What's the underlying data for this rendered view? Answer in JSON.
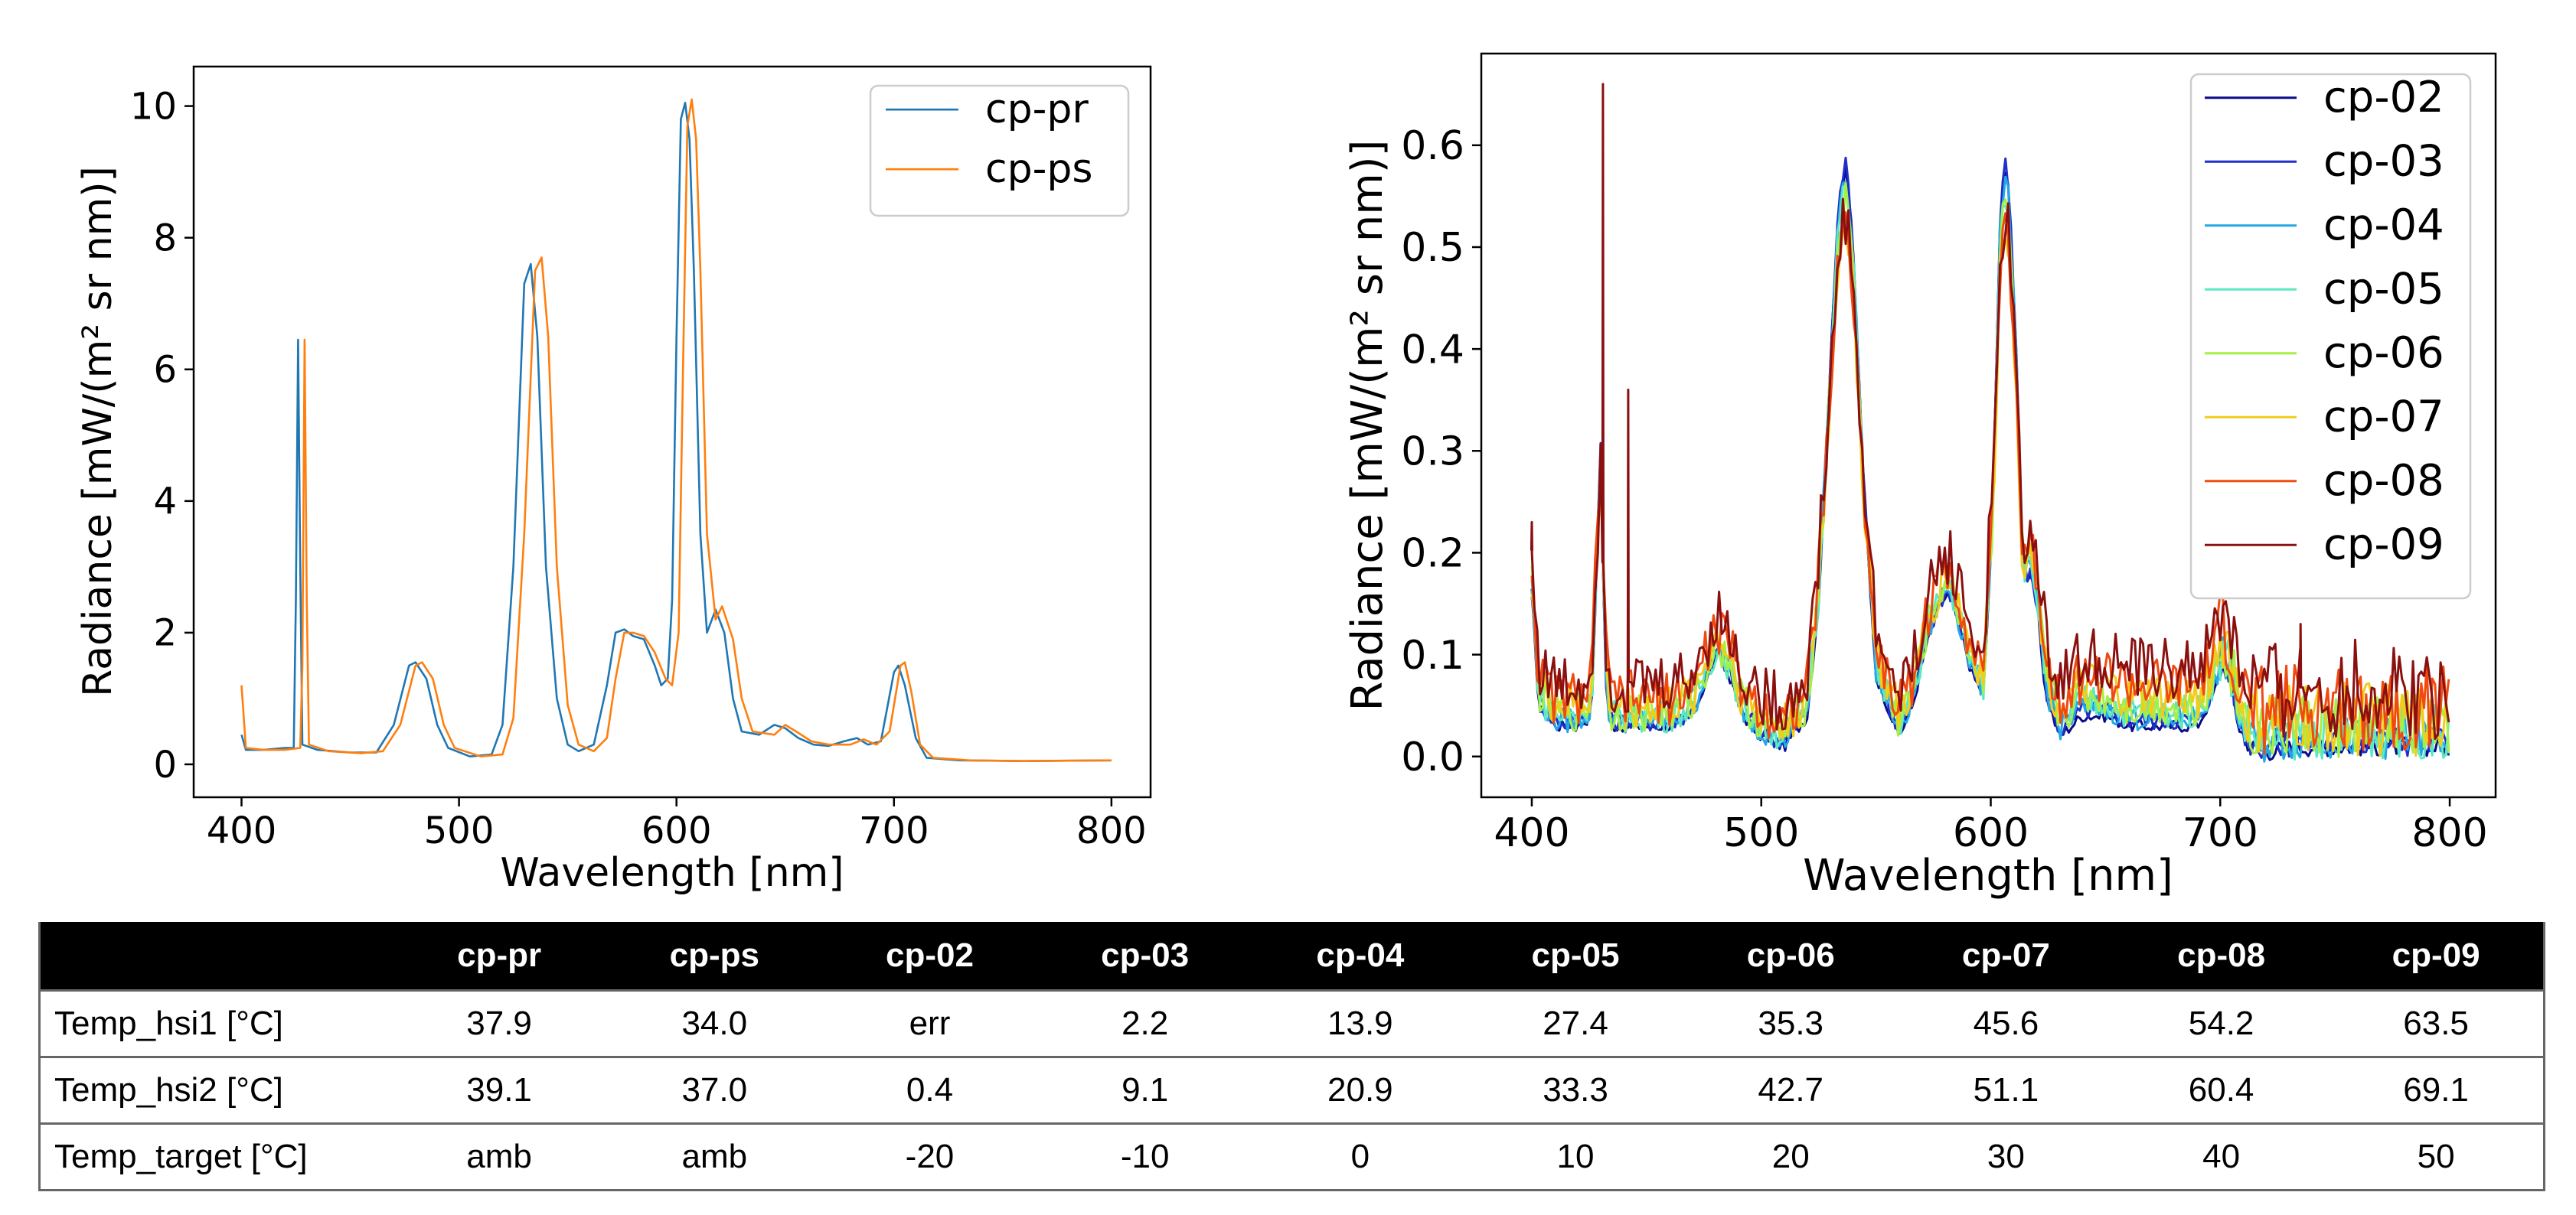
{
  "chart_data": [
    {
      "type": "line",
      "xlabel": "Wavelength [nm]",
      "ylabel": "Radiance [mW/(m² sr nm)]",
      "xlim": [
        378,
        818
      ],
      "ylim": [
        -0.5,
        10.6
      ],
      "xticks": [
        400,
        500,
        600,
        700,
        800
      ],
      "yticks": [
        0,
        2,
        4,
        6,
        8,
        10
      ],
      "grid": false,
      "legend": "top-right",
      "series": [
        {
          "name": "cp-pr",
          "color": "#1f77b4",
          "points": [
            [
              400,
              0.45
            ],
            [
              402,
              0.22
            ],
            [
              410,
              0.22
            ],
            [
              420,
              0.25
            ],
            [
              424,
              0.25
            ],
            [
              425,
              2.5
            ],
            [
              426,
              6.45
            ],
            [
              427,
              3.0
            ],
            [
              428,
              0.3
            ],
            [
              435,
              0.22
            ],
            [
              450,
              0.18
            ],
            [
              462,
              0.18
            ],
            [
              470,
              0.6
            ],
            [
              477,
              1.5
            ],
            [
              480,
              1.55
            ],
            [
              485,
              1.3
            ],
            [
              490,
              0.6
            ],
            [
              495,
              0.25
            ],
            [
              505,
              0.12
            ],
            [
              515,
              0.15
            ],
            [
              520,
              0.6
            ],
            [
              525,
              3.0
            ],
            [
              530,
              7.3
            ],
            [
              533,
              7.6
            ],
            [
              536,
              6.5
            ],
            [
              540,
              3.0
            ],
            [
              545,
              1.0
            ],
            [
              550,
              0.3
            ],
            [
              555,
              0.2
            ],
            [
              562,
              0.3
            ],
            [
              568,
              1.2
            ],
            [
              572,
              2.0
            ],
            [
              576,
              2.05
            ],
            [
              580,
              1.95
            ],
            [
              585,
              1.9
            ],
            [
              590,
              1.5
            ],
            [
              593,
              1.2
            ],
            [
              596,
              1.3
            ],
            [
              598,
              2.5
            ],
            [
              600,
              6.5
            ],
            [
              602,
              9.8
            ],
            [
              604,
              10.05
            ],
            [
              606,
              9.5
            ],
            [
              608,
              7.5
            ],
            [
              611,
              3.5
            ],
            [
              614,
              2.0
            ],
            [
              618,
              2.35
            ],
            [
              622,
              2.0
            ],
            [
              626,
              1.0
            ],
            [
              630,
              0.5
            ],
            [
              638,
              0.45
            ],
            [
              645,
              0.6
            ],
            [
              650,
              0.55
            ],
            [
              656,
              0.4
            ],
            [
              663,
              0.3
            ],
            [
              670,
              0.28
            ],
            [
              677,
              0.35
            ],
            [
              683,
              0.4
            ],
            [
              688,
              0.3
            ],
            [
              694,
              0.35
            ],
            [
              700,
              1.4
            ],
            [
              702,
              1.5
            ],
            [
              705,
              1.2
            ],
            [
              710,
              0.4
            ],
            [
              715,
              0.1
            ],
            [
              730,
              0.06
            ],
            [
              760,
              0.05
            ],
            [
              800,
              0.06
            ]
          ]
        },
        {
          "name": "cp-ps",
          "color": "#ff7f0e",
          "points": [
            [
              400,
              1.2
            ],
            [
              402,
              0.25
            ],
            [
              410,
              0.22
            ],
            [
              420,
              0.22
            ],
            [
              427,
              0.25
            ],
            [
              428,
              1.5
            ],
            [
              429,
              6.45
            ],
            [
              430,
              2.5
            ],
            [
              431,
              0.3
            ],
            [
              440,
              0.2
            ],
            [
              455,
              0.17
            ],
            [
              465,
              0.2
            ],
            [
              473,
              0.6
            ],
            [
              480,
              1.5
            ],
            [
              483,
              1.55
            ],
            [
              488,
              1.3
            ],
            [
              493,
              0.6
            ],
            [
              498,
              0.25
            ],
            [
              510,
              0.12
            ],
            [
              520,
              0.15
            ],
            [
              525,
              0.7
            ],
            [
              530,
              3.5
            ],
            [
              535,
              7.5
            ],
            [
              538,
              7.7
            ],
            [
              541,
              6.5
            ],
            [
              545,
              3.0
            ],
            [
              550,
              0.9
            ],
            [
              555,
              0.3
            ],
            [
              562,
              0.2
            ],
            [
              568,
              0.4
            ],
            [
              572,
              1.3
            ],
            [
              576,
              2.0
            ],
            [
              580,
              2.0
            ],
            [
              585,
              1.95
            ],
            [
              590,
              1.7
            ],
            [
              595,
              1.3
            ],
            [
              598,
              1.2
            ],
            [
              601,
              2.0
            ],
            [
              603,
              6.0
            ],
            [
              605,
              9.7
            ],
            [
              607,
              10.1
            ],
            [
              609,
              9.5
            ],
            [
              611,
              7.5
            ],
            [
              614,
              3.5
            ],
            [
              618,
              2.2
            ],
            [
              621,
              2.4
            ],
            [
              626,
              1.9
            ],
            [
              630,
              1.0
            ],
            [
              635,
              0.5
            ],
            [
              645,
              0.45
            ],
            [
              650,
              0.6
            ],
            [
              655,
              0.5
            ],
            [
              662,
              0.35
            ],
            [
              670,
              0.3
            ],
            [
              680,
              0.3
            ],
            [
              686,
              0.38
            ],
            [
              692,
              0.3
            ],
            [
              698,
              0.5
            ],
            [
              703,
              1.5
            ],
            [
              705,
              1.55
            ],
            [
              708,
              1.1
            ],
            [
              712,
              0.3
            ],
            [
              718,
              0.1
            ],
            [
              735,
              0.06
            ],
            [
              760,
              0.05
            ],
            [
              800,
              0.06
            ]
          ]
        }
      ]
    },
    {
      "type": "line",
      "xlabel": "Wavelength [nm]",
      "ylabel": "Radiance [mW/(m² sr nm)]",
      "xlim": [
        378,
        820
      ],
      "ylim": [
        -0.04,
        0.69
      ],
      "xticks": [
        400,
        500,
        600,
        700,
        800
      ],
      "yticks": [
        0.0,
        0.1,
        0.2,
        0.3,
        0.4,
        0.5,
        0.6
      ],
      "grid": false,
      "legend": "top-right",
      "base_shape": {
        "x": [
          400,
          403,
          410,
          420,
          426,
          428,
          430,
          432,
          434,
          440,
          450,
          460,
          470,
          477,
          481,
          486,
          492,
          500,
          510,
          520,
          525,
          530,
          534,
          537,
          540,
          545,
          550,
          560,
          566,
          572,
          578,
          582,
          586,
          592,
          597,
          601,
          604,
          606,
          608,
          611,
          614,
          618,
          620,
          624,
          630,
          640,
          650,
          660,
          670,
          680,
          690,
          697,
          701,
          704,
          708,
          713,
          720,
          735,
          760,
          800
        ],
        "y": [
          0.16,
          0.05,
          0.03,
          0.03,
          0.04,
          0.17,
          0.3,
          0.08,
          0.03,
          0.03,
          0.03,
          0.03,
          0.04,
          0.08,
          0.1,
          0.08,
          0.04,
          0.02,
          0.01,
          0.04,
          0.15,
          0.38,
          0.55,
          0.58,
          0.5,
          0.25,
          0.08,
          0.02,
          0.05,
          0.11,
          0.15,
          0.16,
          0.13,
          0.08,
          0.06,
          0.25,
          0.52,
          0.58,
          0.55,
          0.4,
          0.18,
          0.17,
          0.15,
          0.06,
          0.02,
          0.04,
          0.04,
          0.03,
          0.03,
          0.03,
          0.03,
          0.06,
          0.09,
          0.08,
          0.03,
          0.01,
          0.005,
          0.01,
          0.01,
          0.01
        ]
      },
      "series": [
        {
          "name": "cp-02",
          "color": "#0a0a8c",
          "peak_scale": 1.0,
          "baseline": 0.0
        },
        {
          "name": "cp-03",
          "color": "#1f2fc8",
          "peak_scale": 1.0,
          "baseline": 0.004
        },
        {
          "name": "cp-04",
          "color": "#23a8e6",
          "peak_scale": 0.98,
          "baseline": 0.006
        },
        {
          "name": "cp-05",
          "color": "#5ce8c2",
          "peak_scale": 0.95,
          "baseline": 0.01
        },
        {
          "name": "cp-06",
          "color": "#a6f045",
          "peak_scale": 0.92,
          "baseline": 0.014
        },
        {
          "name": "cp-07",
          "color": "#f2cc1a",
          "peak_scale": 0.88,
          "baseline": 0.02
        },
        {
          "name": "cp-08",
          "color": "#f04a10",
          "peak_scale": 0.86,
          "baseline": 0.028
        },
        {
          "name": "cp-09",
          "color": "#8a1010",
          "peak_scale": 0.85,
          "baseline": 0.04,
          "spikes": [
            [
              400,
              0.23
            ],
            [
              431,
              0.66
            ],
            [
              442,
              0.36
            ],
            [
              735,
              0.13
            ]
          ]
        }
      ]
    }
  ],
  "table": {
    "headers": [
      "",
      "cp-pr",
      "cp-ps",
      "cp-02",
      "cp-03",
      "cp-04",
      "cp-05",
      "cp-06",
      "cp-07",
      "cp-08",
      "cp-09"
    ],
    "rows": [
      [
        "Temp_hsi1 [°C]",
        "37.9",
        "34.0",
        "err",
        "2.2",
        "13.9",
        "27.4",
        "35.3",
        "45.6",
        "54.2",
        "63.5"
      ],
      [
        "Temp_hsi2 [°C]",
        "39.1",
        "37.0",
        "0.4",
        "9.1",
        "20.9",
        "33.3",
        "42.7",
        "51.1",
        "60.4",
        "69.1"
      ],
      [
        "Temp_target [°C]",
        "amb",
        "amb",
        "-20",
        "-10",
        "0",
        "10",
        "20",
        "30",
        "40",
        "50"
      ]
    ]
  }
}
